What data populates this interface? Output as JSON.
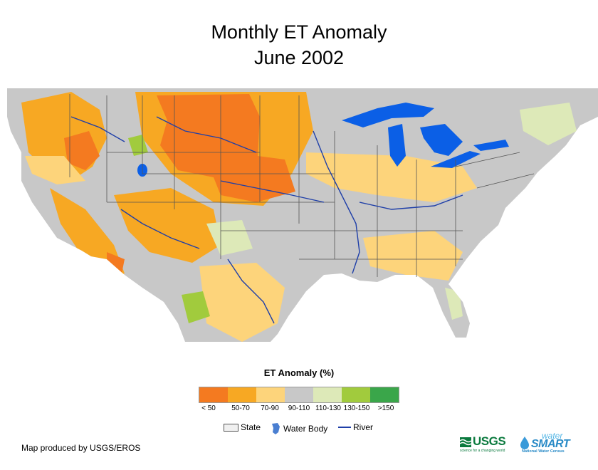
{
  "title": {
    "line1": "Monthly ET Anomaly",
    "line2": "June 2002"
  },
  "legend": {
    "title": "ET Anomaly (%)",
    "classes": [
      {
        "label": "< 50",
        "color": "#f47a20"
      },
      {
        "label": "50-70",
        "color": "#f7a823"
      },
      {
        "label": "70-90",
        "color": "#fdd47b"
      },
      {
        "label": "90-110",
        "color": "#c8c8c8"
      },
      {
        "label": "110-130",
        "color": "#dde9b8"
      },
      {
        "label": "130-150",
        "color": "#a1cb3d"
      },
      {
        "label": ">150",
        "color": "#3aa64a"
      }
    ],
    "features": {
      "state": "State",
      "water_body": "Water Body",
      "river": "River"
    }
  },
  "map": {
    "water_color": "#0b5fe6",
    "river_color": "#1f3fa8",
    "region_colors": {
      "dry_core": "#f47a20",
      "dry": "#f7a823",
      "mild_dry": "#fdd47b",
      "normal": "#c8c8c8",
      "wet": "#dde9b8",
      "wetter": "#a1cb3d"
    }
  },
  "credit": "Map produced by USGS/EROS",
  "logos": {
    "usgs": "USGS",
    "usgs_tagline": "science for a changing world",
    "watersmart_top": "water",
    "watersmart_main": "SMART",
    "watersmart_tagline": "National Water Census"
  }
}
